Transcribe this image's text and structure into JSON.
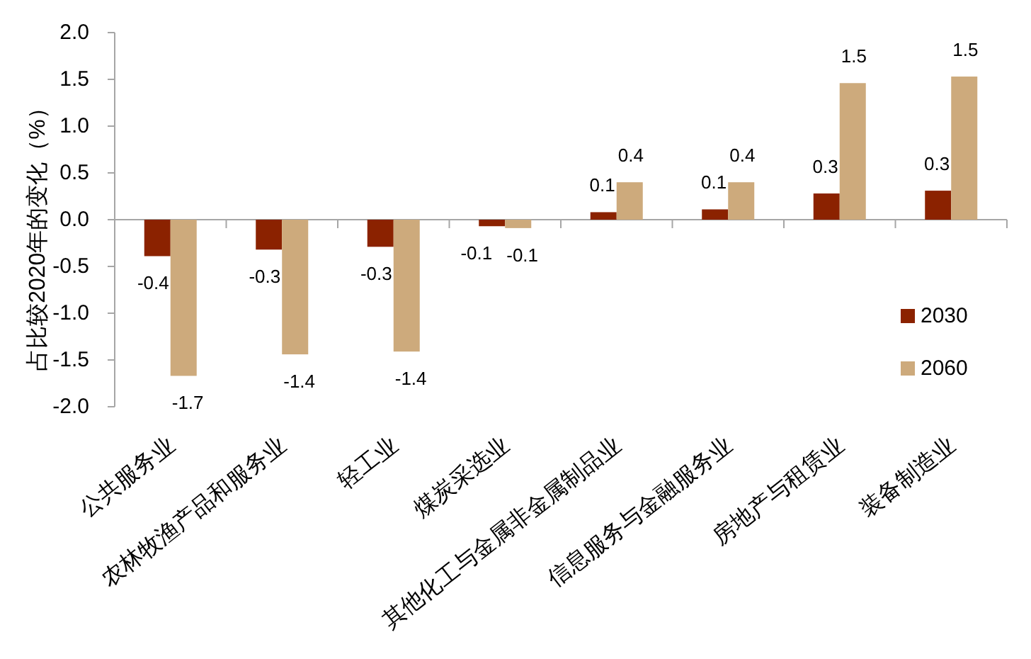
{
  "chart_data": {
    "type": "bar",
    "ylabel": "占比较2020年的变化（%）",
    "categories": [
      "公共服务业",
      "农林牧渔产品和服务业",
      "轻工业",
      "煤炭采选业",
      "其他化工与金属非金属制品业",
      "信息服务与金融服务业",
      "房地产与租赁业",
      "装备制造业"
    ],
    "series": [
      {
        "name": "2030",
        "color": "#8b2200",
        "values": [
          -0.39,
          -0.32,
          -0.29,
          -0.07,
          0.08,
          0.11,
          0.28,
          0.31
        ],
        "value_labels": [
          "-0.4",
          "-0.3",
          "-0.3",
          "-0.1",
          "0.1",
          "0.1",
          "0.3",
          "0.3"
        ]
      },
      {
        "name": "2060",
        "color": "#cdaa7c",
        "values": [
          -1.67,
          -1.44,
          -1.41,
          -0.09,
          0.4,
          0.4,
          1.46,
          1.53
        ],
        "value_labels": [
          "-1.7",
          "-1.4",
          "-1.4",
          "-0.1",
          "0.4",
          "0.4",
          "1.5",
          "1.5"
        ]
      }
    ],
    "ylim": [
      -2,
      2
    ],
    "yticks": [
      {
        "value": -2,
        "label": "-2.0"
      },
      -1.5,
      {
        "value": -1,
        "label": "-1.0"
      },
      -0.5,
      {
        "value": 0,
        "label": "0.0"
      },
      0.5,
      {
        "value": 1,
        "label": "1.0"
      },
      1.5,
      {
        "value": 2,
        "label": "2.0"
      }
    ],
    "legend": "bottom right"
  }
}
